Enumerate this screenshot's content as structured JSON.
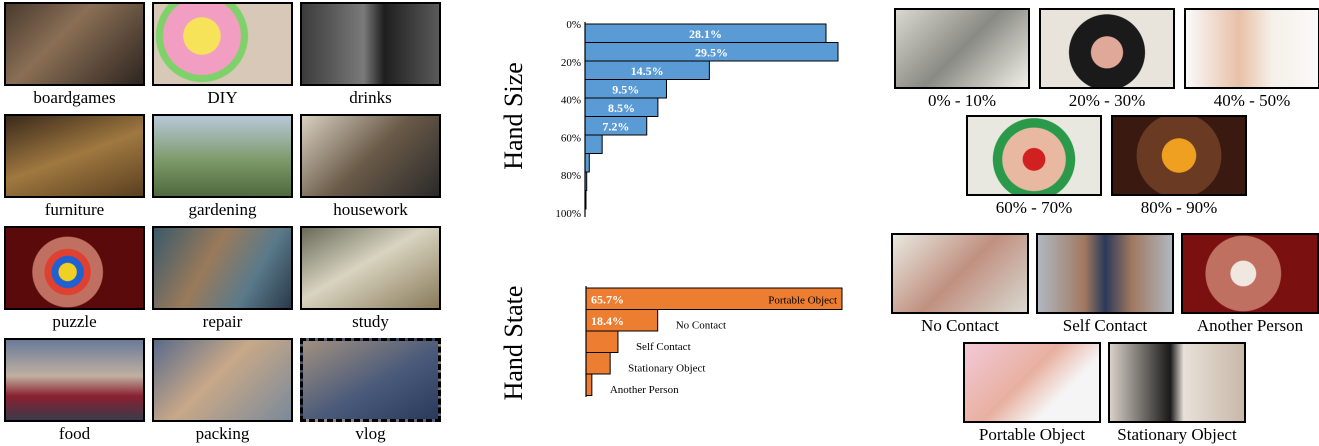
{
  "categories": {
    "items": [
      "boardgames",
      "DIY",
      "drinks",
      "furniture",
      "gardening",
      "housework",
      "puzzle",
      "repair",
      "study",
      "food",
      "packing",
      "vlog"
    ]
  },
  "colors": {
    "size_bar": "#5b9bd5",
    "state_bar": "#ed7d31"
  },
  "chart_data": [
    {
      "type": "bar",
      "orientation": "horizontal",
      "ylabel": "Hand Size",
      "tick_labels": [
        "0%",
        "20%",
        "40%",
        "60%",
        "80%",
        "100%"
      ],
      "bins": [
        "0%-10%",
        "10%-20%",
        "20%-30%",
        "30%-40%",
        "40%-50%",
        "50%-60%",
        "60%-70%",
        "70%-80%",
        "80%-90%",
        "90%-100%"
      ],
      "values": [
        28.1,
        29.5,
        14.5,
        9.5,
        8.5,
        7.2,
        2.0,
        0.5,
        0.2,
        0.1
      ],
      "data_labels": [
        "28.1%",
        "29.5%",
        "14.5%",
        "9.5%",
        "8.5%",
        "7.2%",
        "",
        "",
        "",
        ""
      ]
    },
    {
      "type": "bar",
      "orientation": "horizontal",
      "ylabel": "Hand State",
      "categories": [
        "Portable Object",
        "No Contact",
        "Self Contact",
        "Stationary Object",
        "Another Person"
      ],
      "values": [
        65.7,
        18.4,
        8.2,
        6.2,
        1.5
      ],
      "data_labels": [
        "65.7%",
        "18.4%",
        "",
        "",
        ""
      ]
    }
  ],
  "size_examples": {
    "captions": [
      "0% - 10%",
      "20% - 30%",
      "40% - 50%",
      "60% - 70%",
      "80% - 90%"
    ]
  },
  "state_examples": {
    "captions": [
      "No Contact",
      "Self Contact",
      "Another Person",
      "Portable Object",
      "Stationary Object"
    ]
  }
}
